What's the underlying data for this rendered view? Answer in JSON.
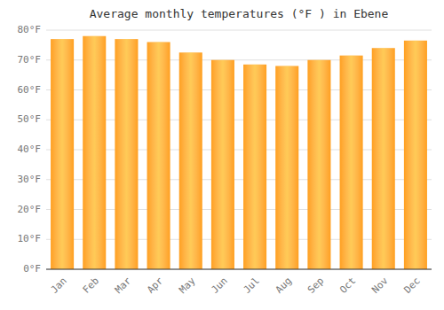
{
  "chart_data": {
    "type": "bar",
    "title": "Average monthly temperatures (°F ) in Ebene",
    "categories": [
      "Jan",
      "Feb",
      "Mar",
      "Apr",
      "May",
      "Jun",
      "Jul",
      "Aug",
      "Sep",
      "Oct",
      "Nov",
      "Dec"
    ],
    "values": [
      77.0,
      78.0,
      77.0,
      76.0,
      72.5,
      70.0,
      68.5,
      68.0,
      70.0,
      71.5,
      74.0,
      76.5
    ],
    "color": "#FFA020",
    "ylim": [
      0,
      80
    ],
    "yticks": [
      {
        "value": 0,
        "label": "0°F"
      },
      {
        "value": 10,
        "label": "10°F"
      },
      {
        "value": 20,
        "label": "20°F"
      },
      {
        "value": 30,
        "label": "30°F"
      },
      {
        "value": 40,
        "label": "40°F"
      },
      {
        "value": 50,
        "label": "50°F"
      },
      {
        "value": 60,
        "label": "60°F"
      },
      {
        "value": 70,
        "label": "70°F"
      },
      {
        "value": 80,
        "label": "80°F"
      }
    ],
    "grid": true
  }
}
